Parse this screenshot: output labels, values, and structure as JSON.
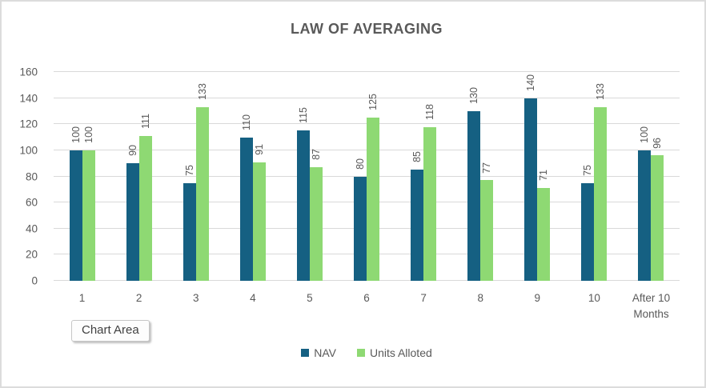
{
  "title": "LAW OF AVERAGING",
  "tooltip": {
    "label": "Chart Area"
  },
  "colors": {
    "nav_bar": "#156082",
    "units_bar": "#8ED973",
    "gridline": "#D9D9D9",
    "text": "#595959"
  },
  "chart_data": {
    "type": "bar",
    "title": "LAW OF AVERAGING",
    "categories": [
      "1",
      "2",
      "3",
      "4",
      "5",
      "6",
      "7",
      "8",
      "9",
      "10",
      "After 10 Months"
    ],
    "series": [
      {
        "name": "NAV",
        "color": "#156082",
        "values": [
          100,
          90,
          75,
          110,
          115,
          80,
          85,
          130,
          140,
          75,
          100
        ]
      },
      {
        "name": "Units Alloted",
        "color": "#8ED973",
        "values": [
          100,
          111,
          133,
          91,
          87,
          125,
          118,
          77,
          71,
          133,
          96
        ]
      }
    ],
    "xlabel": "",
    "ylabel": "",
    "ylim": [
      0,
      160
    ],
    "ytick_step": 20,
    "yticks": [
      0,
      20,
      40,
      60,
      80,
      100,
      120,
      140,
      160
    ],
    "grid": true,
    "legend_position": "bottom",
    "data_labels": "rotated-vertical-outside-end"
  }
}
